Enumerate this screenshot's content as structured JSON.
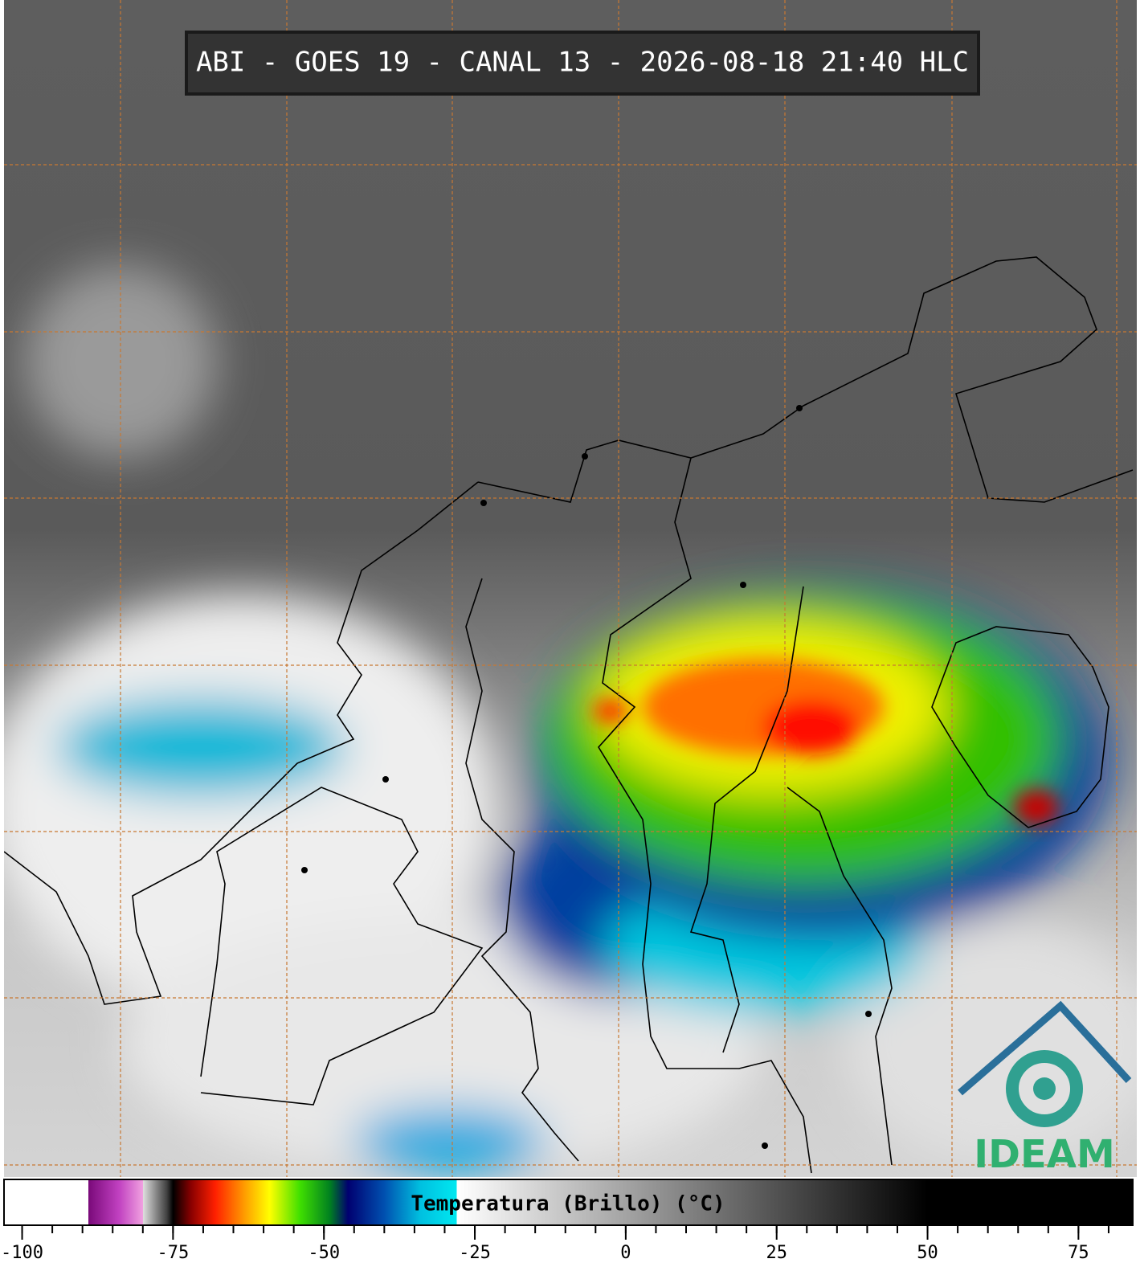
{
  "title": "ABI - GOES 19 - CANAL 13 - 2026-08-18 21:40 HLC",
  "logo": "IDEAM",
  "colorbar": {
    "label": "Temperatura (Brillo) (°C)",
    "lim": [
      -103,
      84
    ],
    "ticks": [
      -100,
      -75,
      -50,
      -25,
      0,
      25,
      50,
      75
    ],
    "minor_ticks": [
      -100,
      -95,
      -90,
      -85,
      -80,
      -75,
      -70,
      -65,
      -60,
      -55,
      -50,
      -45,
      -40,
      -35,
      -30,
      -25,
      -20,
      -15,
      -10,
      -5,
      0,
      5,
      10,
      15,
      20,
      25,
      30,
      35,
      40,
      45,
      50,
      55,
      60,
      65,
      70,
      75,
      80
    ],
    "colorscale": [
      {
        "value": -103,
        "color": "#ffffff"
      },
      {
        "value": -89,
        "color": "#ffffff"
      },
      {
        "value": -89,
        "color": "#7a0a7a"
      },
      {
        "value": -84,
        "color": "#c040c0"
      },
      {
        "value": -80,
        "color": "#f0a0e0"
      },
      {
        "value": -80,
        "color": "#e0e0e0"
      },
      {
        "value": -76,
        "color": "#404040"
      },
      {
        "value": -75,
        "color": "#000000"
      },
      {
        "value": -72,
        "color": "#8a0000"
      },
      {
        "value": -68,
        "color": "#ff2000"
      },
      {
        "value": -63,
        "color": "#ffa000"
      },
      {
        "value": -59,
        "color": "#ffff00"
      },
      {
        "value": -54,
        "color": "#40e000"
      },
      {
        "value": -49,
        "color": "#008020"
      },
      {
        "value": -46,
        "color": "#000070"
      },
      {
        "value": -40,
        "color": "#0050b0"
      },
      {
        "value": -34,
        "color": "#00c0e0"
      },
      {
        "value": -28,
        "color": "#00e8f0"
      },
      {
        "value": -28,
        "color": "#ffffff"
      },
      {
        "value": 50,
        "color": "#000000"
      },
      {
        "value": 84,
        "color": "#000000"
      }
    ]
  }
}
